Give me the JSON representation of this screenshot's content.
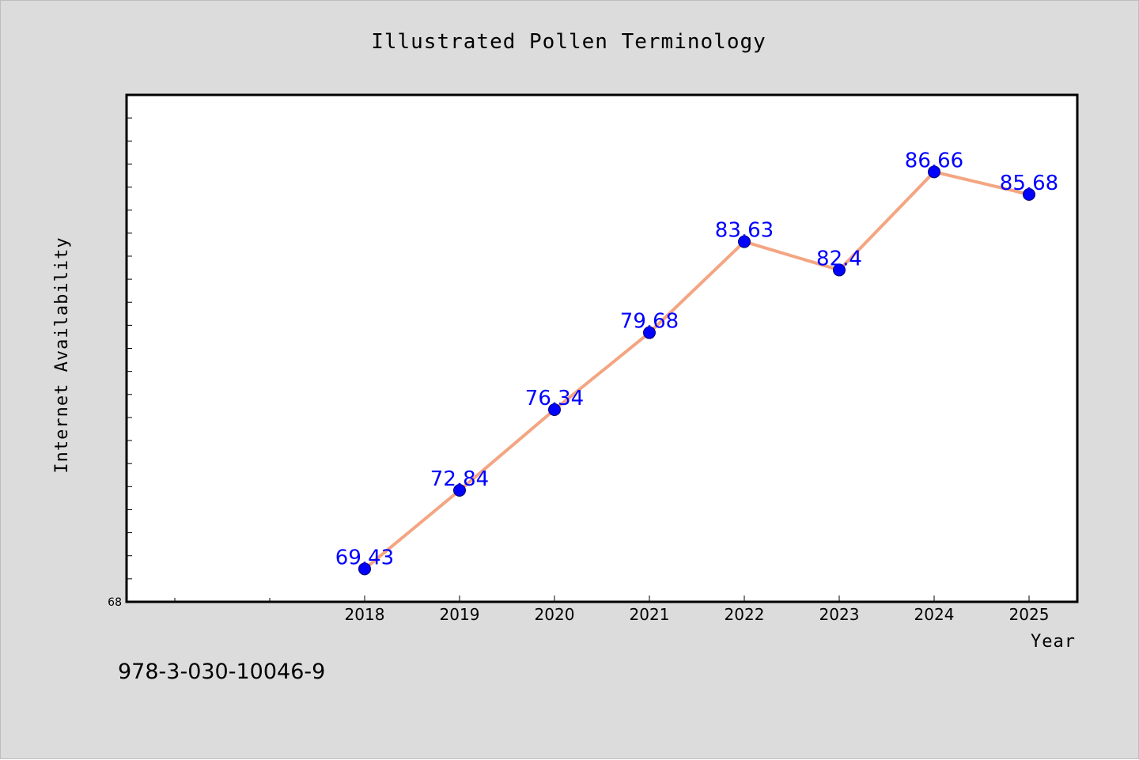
{
  "chart_data": {
    "type": "line",
    "title": "Illustrated Pollen Terminology",
    "xlabel": "Year",
    "ylabel": "Internet Availability",
    "categories": [
      "2018",
      "2019",
      "2020",
      "2021",
      "2022",
      "2023",
      "2024",
      "2025"
    ],
    "series": [
      {
        "values": [
          69.43,
          72.84,
          76.34,
          79.68,
          83.63,
          82.4,
          86.66,
          85.68
        ],
        "value_labels": [
          "69.43",
          "72.84",
          "76.34",
          "79.68",
          "83.63",
          "82.4",
          "86.66",
          "85.68"
        ],
        "line_color": "#f4a582",
        "marker_color": "#0000ff",
        "label_color": "#0000ff"
      }
    ],
    "ylim": [
      68,
      90
    ],
    "y_tick_labels": [
      "68"
    ],
    "y_minor_tick_step": 1,
    "grid": false,
    "legend": "none",
    "plot_background": "#ffffff",
    "figure_background": "#dcdcdc"
  },
  "footnote": "978-3-030-10046-9"
}
